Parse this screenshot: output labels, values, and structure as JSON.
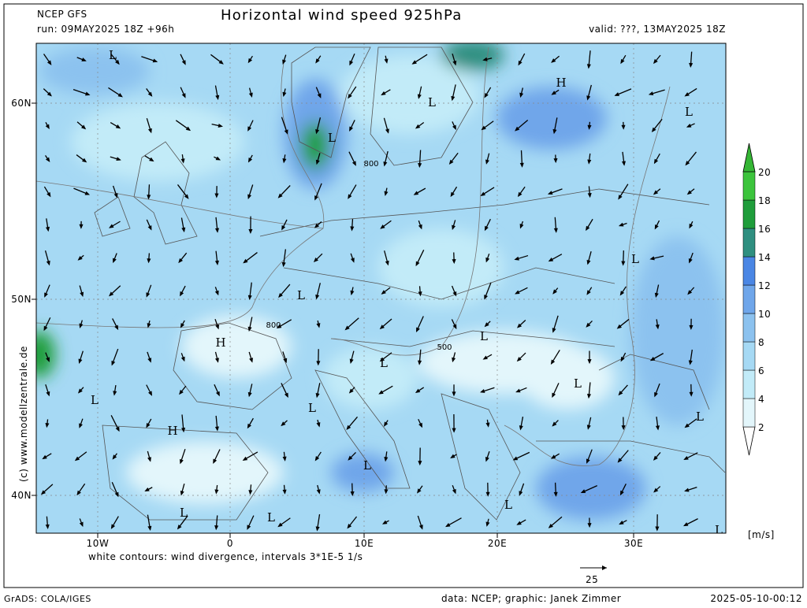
{
  "header": {
    "model": "NCEP GFS",
    "title": "Horizontal wind speed 925hPa",
    "run": "run: 09MAY2025 18Z +96h",
    "valid": "valid: ???, 13MAY2025 18Z"
  },
  "map": {
    "lat_labels": [
      "60N",
      "50N",
      "40N"
    ],
    "lon_labels": [
      "10W",
      "0",
      "10E",
      "20E",
      "30E"
    ],
    "pressure_centers": [
      "L",
      "L",
      "H",
      "L",
      "L",
      "L",
      "L",
      "H",
      "L",
      "L",
      "L",
      "L",
      "L",
      "H",
      "L",
      "L",
      "L",
      "L",
      "L",
      "L"
    ],
    "contour_labels": [
      "800",
      "800",
      "500"
    ]
  },
  "colorbar": {
    "levels": [
      2,
      4,
      6,
      8,
      10,
      12,
      14,
      16,
      18,
      20
    ],
    "colors": [
      "#ffffff",
      "#e3f6fb",
      "#c2ebf8",
      "#a6d9f4",
      "#8cc2ef",
      "#6fa6ea",
      "#4a86e4",
      "#2f8f80",
      "#1f9d3b",
      "#3cc43c",
      "#35b635"
    ],
    "unit": "[m/s]"
  },
  "footer": {
    "note": "white contours: wind divergence, intervals 3*1E-5 1/s",
    "vector_scale": "25",
    "watermark": "(c) www.modellzentrale.de",
    "software": "GrADS: COLA/IGES",
    "credits": "data: NCEP; graphic: Janek Zimmer",
    "timestamp": "2025-05-10-00:12"
  }
}
